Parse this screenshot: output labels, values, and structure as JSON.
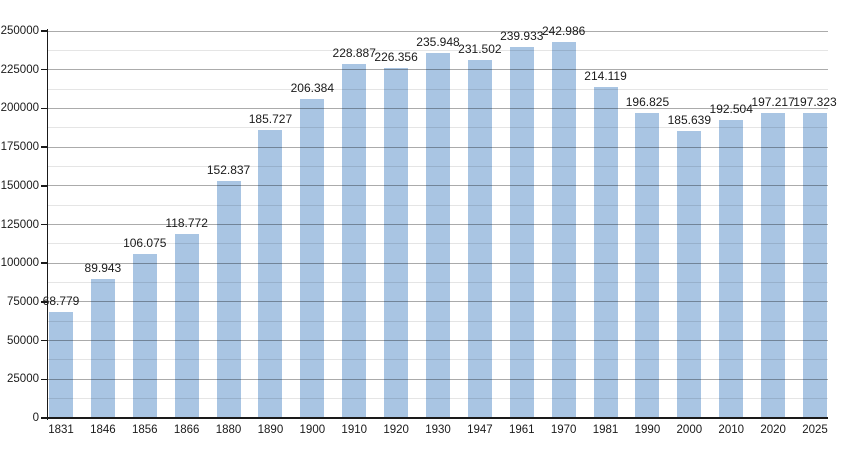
{
  "chart_data": {
    "type": "bar",
    "title": "",
    "xlabel": "",
    "ylabel": "",
    "categories": [
      "1831",
      "1846",
      "1856",
      "1866",
      "1880",
      "1890",
      "1900",
      "1910",
      "1920",
      "1930",
      "1947",
      "1961",
      "1970",
      "1981",
      "1990",
      "2000",
      "2010",
      "2020",
      "2025"
    ],
    "values": [
      68779,
      89943,
      106075,
      118772,
      152837,
      185727,
      206384,
      228887,
      226356,
      235948,
      231502,
      239933,
      242986,
      214119,
      196825,
      185639,
      192504,
      197217,
      197323
    ],
    "value_labels": [
      "68.779",
      "89.943",
      "106.075",
      "118.772",
      "152.837",
      "185.727",
      "206.384",
      "228.887",
      "226.356",
      "235.948",
      "231.502",
      "239.933",
      "242.986",
      "214.119",
      "196.825",
      "185.639",
      "192.504",
      "197.217",
      "197.323"
    ],
    "ylim": [
      0,
      250000
    ],
    "y_major_step": 25000,
    "y_minor_step": 12500,
    "y_tick_labels": [
      "0",
      "25000",
      "50000",
      "75000",
      "100000",
      "125000",
      "150000",
      "175000",
      "200000",
      "225000",
      "250000"
    ],
    "grid": "on",
    "legend_position": "none",
    "colors": {
      "bar_fill": "#a9c5e3",
      "axis": "#1a1a1a",
      "major_grid": "rgba(0,0,0,0.33)",
      "minor_grid": "rgba(0,0,0,0.10)",
      "text": "#1a1a1a",
      "background": "#ffffff"
    }
  }
}
